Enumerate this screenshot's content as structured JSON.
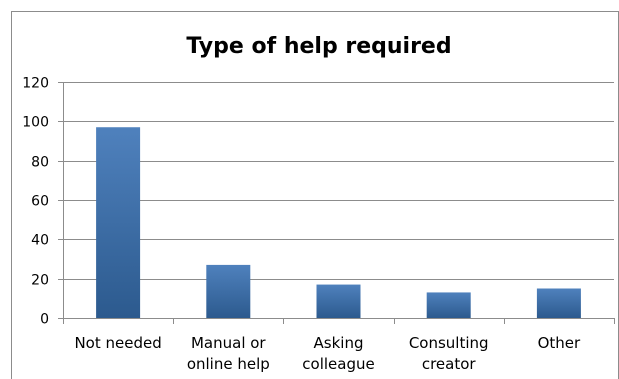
{
  "chart_data": {
    "type": "bar",
    "title": "Type of help required",
    "xlabel": "",
    "ylabel": "",
    "categories": [
      [
        "Not needed"
      ],
      [
        "Manual or",
        "online help"
      ],
      [
        "Asking",
        "colleague"
      ],
      [
        "Consulting",
        "creator"
      ],
      [
        "Other"
      ]
    ],
    "values": [
      97,
      27,
      17,
      13,
      15
    ],
    "ylim": [
      0,
      120
    ],
    "yticks": [
      0,
      20,
      40,
      60,
      80,
      100,
      120
    ],
    "grid": true,
    "legend": "none",
    "colors": {
      "bar_top": "#4F81BD",
      "bar_bottom": "#2C5A8E",
      "grid": "#8C8C8C",
      "axis": "#8C8C8C",
      "frame": "#8C8C8C"
    }
  }
}
